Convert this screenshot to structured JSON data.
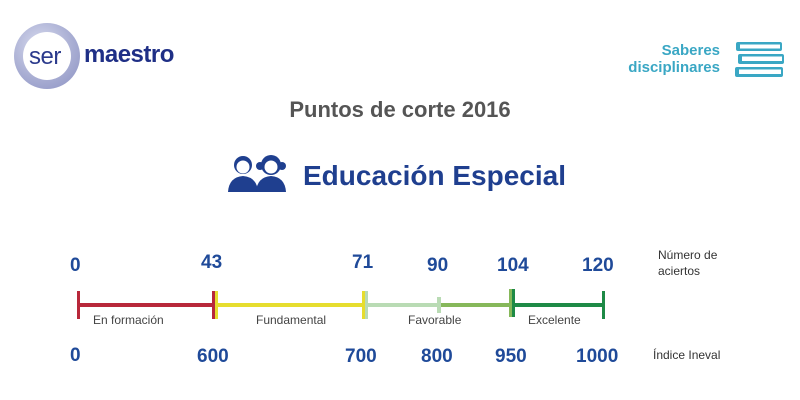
{
  "logo": {
    "ser": "ser",
    "maestro": "maestro"
  },
  "saberes": {
    "line1": "Saberes",
    "line2": "disciplinares",
    "icon": "books-icon"
  },
  "page_title": "Puntos de corte  2016",
  "section": {
    "icon": "children-icon",
    "title": "Educación Especial"
  },
  "scale": {
    "hits_label_line1": "Número de",
    "hits_label_line2": "aciertos",
    "index_label": "Índice Ineval",
    "hits": [
      "0",
      "43",
      "71",
      "90",
      "104",
      "120"
    ],
    "index": [
      "0",
      "600",
      "700",
      "800",
      "950",
      "1000"
    ],
    "segments": [
      {
        "label": "En formación",
        "color": "#b8283a"
      },
      {
        "label": "Fundamental",
        "color": "#e6dd2e"
      },
      {
        "label": "Favorable",
        "color": "#b9dbb4"
      },
      {
        "label": "",
        "color": "#86b85a"
      },
      {
        "label": "Excelente",
        "color": "#1e8a46"
      }
    ]
  },
  "colors": {
    "number_blue": "#1f4a99",
    "title_grey": "#555555",
    "accent_teal": "#3aa7c4",
    "logo_navy": "#1f2f86"
  }
}
